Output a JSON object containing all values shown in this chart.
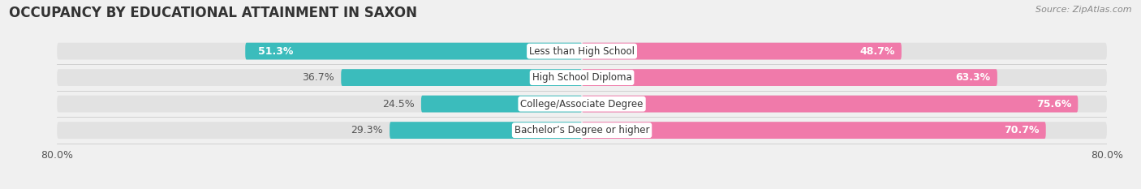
{
  "title": "OCCUPANCY BY EDUCATIONAL ATTAINMENT IN SAXON",
  "source": "Source: ZipAtlas.com",
  "categories": [
    "Less than High School",
    "High School Diploma",
    "College/Associate Degree",
    "Bachelor’s Degree or higher"
  ],
  "owner_values": [
    51.3,
    36.7,
    24.5,
    29.3
  ],
  "renter_values": [
    48.7,
    63.3,
    75.6,
    70.7
  ],
  "owner_color": "#3bbcbc",
  "renter_color": "#f07aaa",
  "owner_label_inside": [
    true,
    false,
    false,
    false
  ],
  "renter_label_inside": [
    true,
    true,
    true,
    true
  ],
  "bar_height": 0.62,
  "xlim": [
    -80,
    80
  ],
  "background_color": "#f0f0f0",
  "bar_bg_color": "#e2e2e2",
  "row_bg_color": "#e8e8e8",
  "title_fontsize": 12,
  "source_fontsize": 8,
  "label_fontsize": 9,
  "category_fontsize": 8.5,
  "legend_fontsize": 9
}
